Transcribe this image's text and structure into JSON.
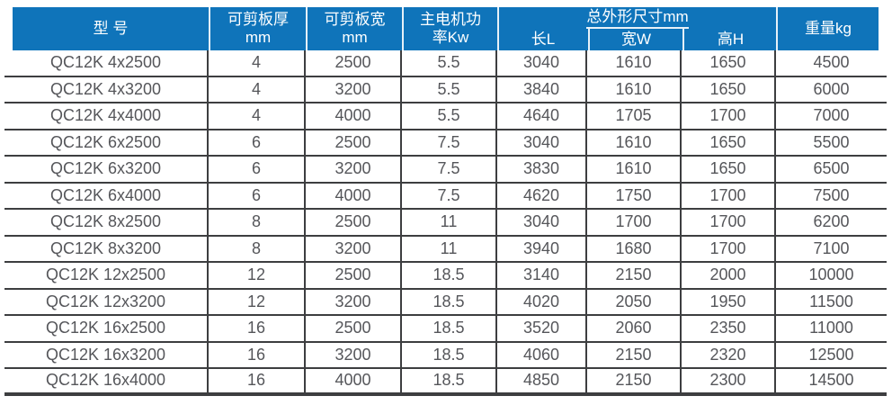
{
  "colors": {
    "header_bg": "#0f74ba",
    "header_text": "#ffffff",
    "grid_line": "#3d3e40",
    "body_text": "#55565a"
  },
  "table": {
    "header": {
      "model": "型 号",
      "thickness_line1": "可剪板厚",
      "thickness_line2": "mm",
      "shear_width_line1": "可剪板宽",
      "shear_width_line2": "mm",
      "motor_line1": "主电机功",
      "motor_line2": "率Kw",
      "dimensions_group": "总外形尺寸mm",
      "length": "长L",
      "width": "宽W",
      "height": "高H",
      "weight": "重量kg"
    },
    "rows": [
      [
        "QC12K 4x2500",
        "4",
        "2500",
        "5.5",
        "3040",
        "1610",
        "1650",
        "4500"
      ],
      [
        "QC12K 4x3200",
        "4",
        "3200",
        "5.5",
        "3840",
        "1610",
        "1650",
        "6000"
      ],
      [
        "QC12K 4x4000",
        "4",
        "4000",
        "5.5",
        "4640",
        "1705",
        "1700",
        "7000"
      ],
      [
        "QC12K 6x2500",
        "6",
        "2500",
        "7.5",
        "3040",
        "1610",
        "1650",
        "5500"
      ],
      [
        "QC12K 6x3200",
        "6",
        "3200",
        "7.5",
        "3830",
        "1610",
        "1650",
        "6500"
      ],
      [
        "QC12K 6x4000",
        "6",
        "4000",
        "7.5",
        "4620",
        "1750",
        "1700",
        "7500"
      ],
      [
        "QC12K 8x2500",
        "8",
        "2500",
        "11",
        "3040",
        "1700",
        "1700",
        "6200"
      ],
      [
        "QC12K 8x3200",
        "8",
        "3200",
        "11",
        "3940",
        "1680",
        "1700",
        "7100"
      ],
      [
        "QC12K 12x2500",
        "12",
        "2500",
        "18.5",
        "3140",
        "2150",
        "2000",
        "10000"
      ],
      [
        "QC12K 12x3200",
        "12",
        "3200",
        "18.5",
        "4020",
        "2050",
        "1950",
        "11500"
      ],
      [
        "QC12K 16x2500",
        "16",
        "2500",
        "18.5",
        "3520",
        "2060",
        "2350",
        "11000"
      ],
      [
        "QC12K 16x3200",
        "16",
        "3200",
        "18.5",
        "4060",
        "2150",
        "2320",
        "12500"
      ],
      [
        "QC12K 16x4000",
        "16",
        "4000",
        "18.5",
        "4850",
        "2150",
        "2300",
        "14500"
      ]
    ]
  }
}
